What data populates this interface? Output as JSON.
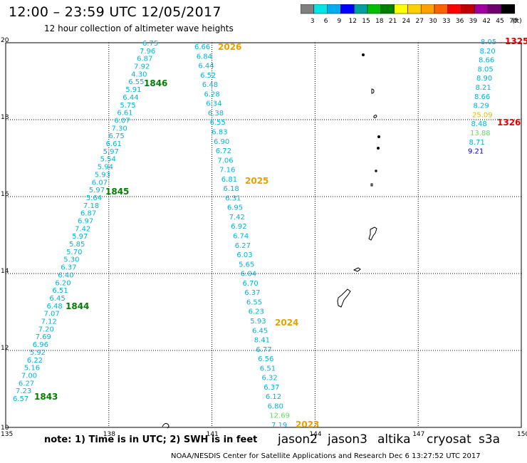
{
  "title": "12:00 – 23:59 UTC 12/05/2017",
  "subtitle": "12 hour collection of altimeter wave heights",
  "scale": {
    "labels": [
      "3",
      "6",
      "9",
      "12",
      "15",
      "18",
      "21",
      "24",
      "27",
      "30",
      "33",
      "36",
      "39",
      "42",
      "45",
      "70"
    ],
    "unit": "(ft)",
    "colors": [
      "#808080",
      "#00e5e5",
      "#00aeef",
      "#0000ff",
      "#00a0a0",
      "#00c000",
      "#008000",
      "#ffff00",
      "#ffd000",
      "#ffa000",
      "#ff6000",
      "#ff0000",
      "#c00000",
      "#a000a0",
      "#700070",
      "#000000"
    ]
  },
  "axes": {
    "x_labels": [
      "135",
      "138",
      "141",
      "144",
      "147",
      "150"
    ],
    "y_labels": [
      "20",
      "18",
      "16",
      "14",
      "12",
      "10"
    ]
  },
  "colors": {
    "cyan": "#00b4dc",
    "green": "#008000",
    "orange": "#e8a000",
    "red": "#e00000",
    "lime": "#5ce05c",
    "yellow": "#e0c000",
    "navy": "#0000c0"
  },
  "tracks": [
    {
      "pass_label": "1846",
      "pass_label_color": "green",
      "values": [
        "6.75",
        "7.96",
        "6.87",
        "7.92",
        "4.30",
        "6.55",
        "5.91",
        "6.44",
        "5.75",
        "6.61",
        "6.07",
        "7.30",
        "6.75",
        "6.61",
        "5.97",
        "5.54",
        "5.94",
        "5.93",
        "6.07",
        "5.97",
        "5.64",
        "7.18",
        "6.87",
        "6.97",
        "7.42",
        "5.97",
        "5.85",
        "5.70",
        "5.30",
        "6.37",
        "6.40",
        "6.20",
        "6.51",
        "6.45",
        "6.48",
        "7.07",
        "7.12",
        "7.20",
        "7.69",
        "6.96",
        "5.92",
        "6.22",
        "5.16",
        "7.00",
        "6.27",
        "7.23",
        "6.57"
      ],
      "colors": []
    },
    {
      "pass_label": "1845",
      "pass_label_color": "green"
    },
    {
      "pass_label": "1844",
      "pass_label_color": "green"
    },
    {
      "pass_label": "1843",
      "pass_label_color": "green"
    },
    {
      "pass_label": "2026",
      "pass_label_color": "orange",
      "values": [
        "6.66",
        "6.84",
        "6.44",
        "6.52",
        "6.48",
        "6.28",
        "6.34",
        "6.38",
        "6.55",
        "6.83",
        "6.90",
        "6.72",
        "7.06",
        "7.16",
        "6.81",
        "6.18",
        "6.31",
        "6.95",
        "7.42",
        "6.92",
        "6.74",
        "6.27",
        "6.03",
        "5.65",
        "6.04",
        "6.70",
        "6.37",
        "6.55",
        "6.23",
        "5.93",
        "6.45",
        "8.41",
        "6.77",
        "6.56",
        "6.51",
        "6.32",
        "6.37",
        "6.12",
        "6.80",
        "12.69",
        "7.19"
      ]
    },
    {
      "pass_label": "2025",
      "pass_label_color": "orange"
    },
    {
      "pass_label": "2024",
      "pass_label_color": "orange"
    },
    {
      "pass_label": "2023",
      "pass_label_color": "orange"
    },
    {
      "pass_label": "1325",
      "pass_label_color": "red",
      "values": [
        "8.05",
        "8.20",
        "8.66",
        "8.05",
        "8.90",
        "8.21",
        "8.66",
        "8.29",
        "25.09",
        "8.48",
        "13.88",
        "8.71",
        "9.21"
      ]
    },
    {
      "pass_label": "1326",
      "pass_label_color": "red"
    }
  ],
  "footer_note": "note:  1) Time is in UTC;  2) SWH is in feet",
  "satellites": [
    {
      "name": "jason2",
      "color": "#0000ff"
    },
    {
      "name": "jason3",
      "color": "#008000"
    },
    {
      "name": "altika",
      "color": "#e8a000"
    },
    {
      "name": "cryosat",
      "color": "#e00000"
    },
    {
      "name": "s3a",
      "color": "#a00000"
    }
  ],
  "credit": "NOAA/NESDIS Center for Satellite Applications and Research    Dec  6 13:27:52 UTC 2017"
}
